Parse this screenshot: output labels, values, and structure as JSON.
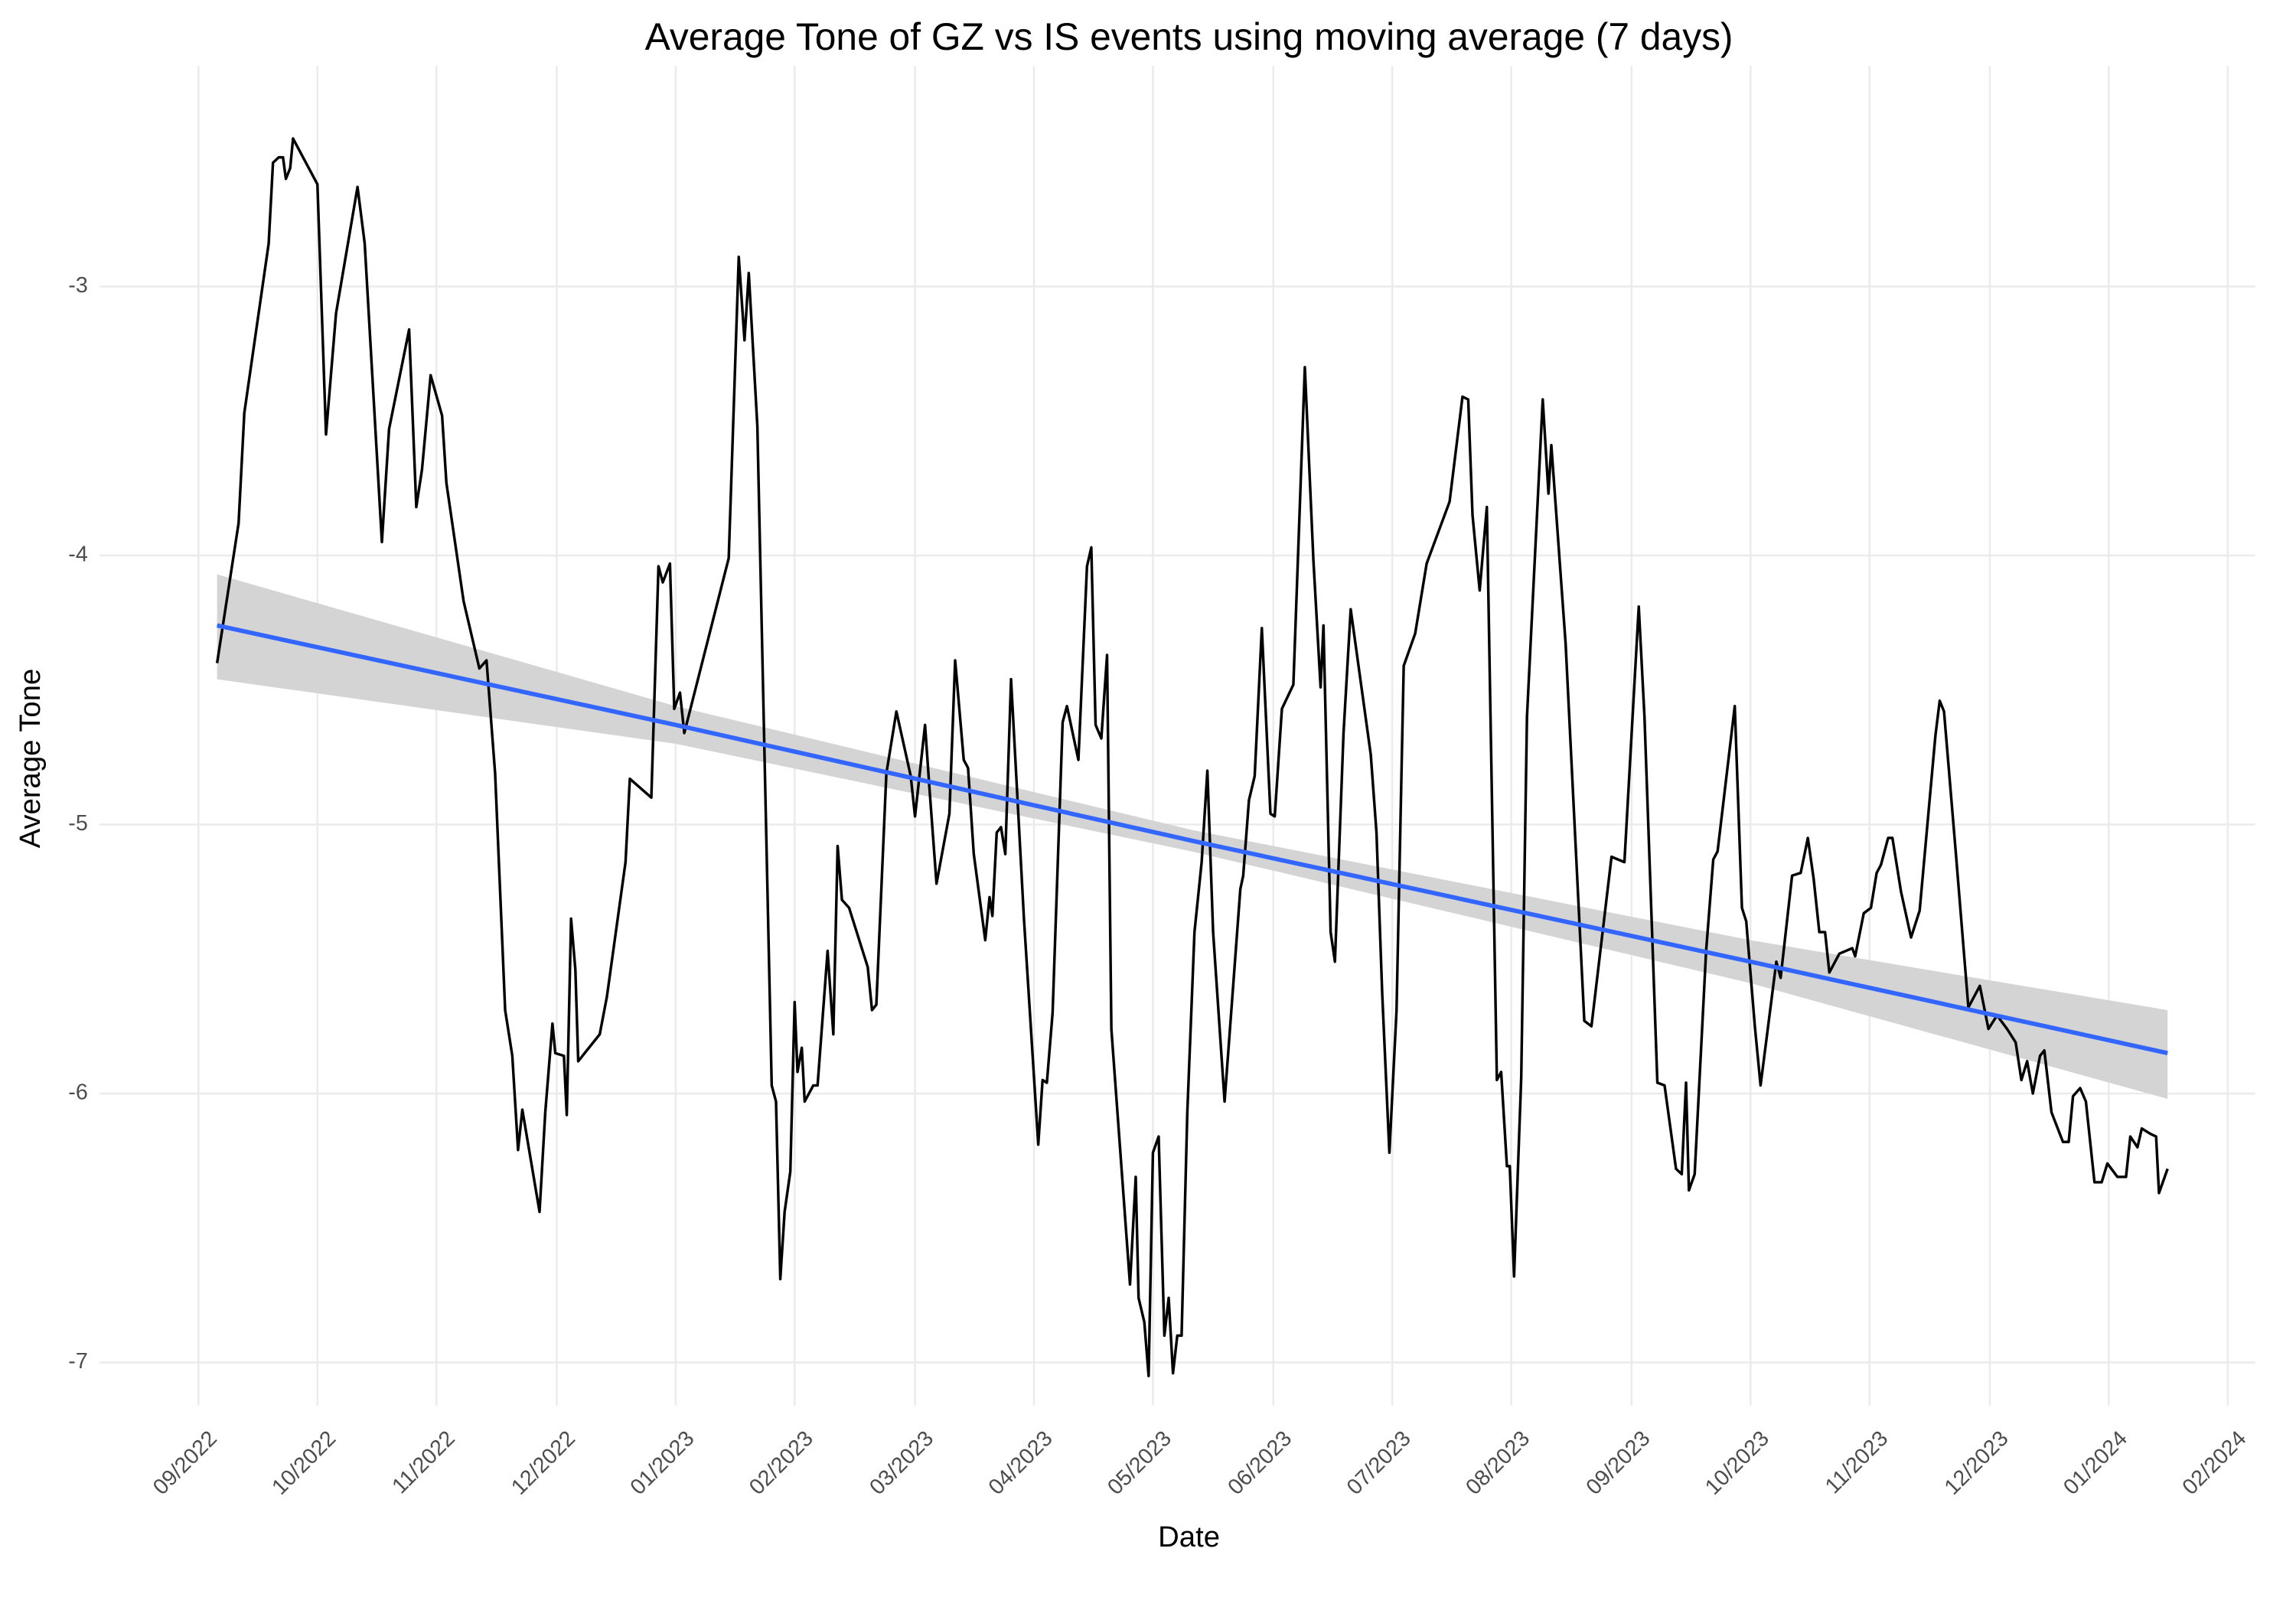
{
  "chart_data": {
    "type": "line",
    "title": "Average Tone of GZ vs IS events using moving average (7 days)",
    "x_label": "Date",
    "y_label": "Average Tone",
    "grid": true,
    "xlim": [
      2022.598,
      2024.102
    ],
    "ylim": [
      -7.16,
      -2.18
    ],
    "xticks": [
      {
        "value": 2022.667,
        "label": "09/2022"
      },
      {
        "value": 2022.75,
        "label": "10/2022"
      },
      {
        "value": 2022.833,
        "label": "11/2022"
      },
      {
        "value": 2022.917,
        "label": "12/2022"
      },
      {
        "value": 2023.0,
        "label": "01/2023"
      },
      {
        "value": 2023.083,
        "label": "02/2023"
      },
      {
        "value": 2023.167,
        "label": "03/2023"
      },
      {
        "value": 2023.25,
        "label": "04/2023"
      },
      {
        "value": 2023.333,
        "label": "05/2023"
      },
      {
        "value": 2023.417,
        "label": "06/2023"
      },
      {
        "value": 2023.5,
        "label": "07/2023"
      },
      {
        "value": 2023.583,
        "label": "08/2023"
      },
      {
        "value": 2023.667,
        "label": "09/2023"
      },
      {
        "value": 2023.75,
        "label": "10/2023"
      },
      {
        "value": 2023.833,
        "label": "11/2023"
      },
      {
        "value": 2023.917,
        "label": "12/2023"
      },
      {
        "value": 2024.0,
        "label": "01/2024"
      },
      {
        "value": 2024.083,
        "label": "02/2024"
      }
    ],
    "yticks": [
      -3,
      -4,
      -5,
      -6,
      -7
    ],
    "x": [
      2022.68,
      2022.695,
      2022.699,
      2022.716,
      2022.719,
      2022.723,
      2022.726,
      2022.728,
      2022.731,
      2022.733,
      2022.75,
      2022.756,
      2022.763,
      2022.778,
      2022.783,
      2022.795,
      2022.8,
      2022.814,
      2022.819,
      2022.823,
      2022.829,
      2022.837,
      2022.84,
      2022.852,
      2022.863,
      2022.868,
      2022.874,
      2022.881,
      2022.886,
      2022.89,
      2022.893,
      2022.905,
      2022.909,
      2022.914,
      2022.916,
      2022.922,
      2022.924,
      2022.927,
      2022.93,
      2022.932,
      2022.947,
      2022.952,
      2022.965,
      2022.968,
      2022.983,
      2022.988,
      2022.991,
      2022.996,
      2022.999,
      2023.003,
      2023.006,
      2023.037,
      2023.044,
      2023.048,
      2023.051,
      2023.057,
      2023.067,
      2023.07,
      2023.073,
      2023.076,
      2023.08,
      2023.083,
      2023.085,
      2023.088,
      2023.09,
      2023.096,
      2023.099,
      2023.106,
      2023.11,
      2023.113,
      2023.116,
      2023.121,
      2023.134,
      2023.137,
      2023.14,
      2023.147,
      2023.154,
      2023.164,
      2023.167,
      2023.174,
      2023.177,
      2023.182,
      2023.191,
      2023.195,
      2023.201,
      2023.204,
      2023.208,
      2023.216,
      2023.219,
      2023.221,
      2023.224,
      2023.227,
      2023.23,
      2023.234,
      2023.243,
      2023.253,
      2023.256,
      2023.259,
      2023.263,
      2023.27,
      2023.273,
      2023.281,
      2023.287,
      2023.29,
      2023.293,
      2023.297,
      2023.301,
      2023.304,
      2023.317,
      2023.321,
      2023.323,
      2023.327,
      2023.33,
      2023.333,
      2023.337,
      2023.341,
      2023.344,
      2023.347,
      2023.35,
      2023.353,
      2023.357,
      2023.362,
      2023.367,
      2023.371,
      2023.375,
      2023.383,
      2023.394,
      2023.396,
      2023.4,
      2023.404,
      2023.409,
      2023.415,
      2023.418,
      2023.423,
      2023.431,
      2023.439,
      2023.445,
      2023.45,
      2023.452,
      2023.457,
      2023.46,
      2023.466,
      2023.471,
      2023.485,
      2023.489,
      2023.493,
      2023.498,
      2023.503,
      2023.508,
      2023.516,
      2023.524,
      2023.54,
      2023.549,
      2023.553,
      2023.556,
      2023.561,
      2023.566,
      2023.573,
      2023.576,
      2023.58,
      2023.582,
      2023.585,
      2023.59,
      2023.594,
      2023.605,
      2023.609,
      2023.611,
      2023.621,
      2023.634,
      2023.639,
      2023.653,
      2023.662,
      2023.672,
      2023.676,
      2023.685,
      2023.69,
      2023.698,
      2023.702,
      2023.705,
      2023.707,
      2023.711,
      2023.719,
      2023.724,
      2023.727,
      2023.739,
      2023.744,
      2023.747,
      2023.753,
      2023.757,
      2023.768,
      2023.771,
      2023.779,
      2023.785,
      2023.79,
      2023.794,
      2023.798,
      2023.802,
      2023.805,
      2023.812,
      2023.821,
      2023.823,
      2023.829,
      2023.834,
      2023.838,
      2023.841,
      2023.846,
      2023.849,
      2023.855,
      2023.862,
      2023.868,
      2023.879,
      2023.882,
      2023.885,
      2023.893,
      2023.902,
      2023.91,
      2023.916,
      2023.922,
      2023.929,
      2023.935,
      2023.939,
      2023.943,
      2023.947,
      2023.952,
      2023.955,
      2023.96,
      2023.968,
      2023.972,
      2023.975,
      2023.98,
      2023.984,
      2023.99,
      2023.995,
      2023.999,
      2024.006,
      2024.012,
      2024.015,
      2024.02,
      2024.023,
      2024.029,
      2024.033,
      2024.035,
      2024.041
    ],
    "series": [
      {
        "color": "#000000",
        "values": [
          -4.4,
          -3.88,
          -3.47,
          -2.84,
          -2.54,
          -2.52,
          -2.52,
          -2.6,
          -2.56,
          -2.45,
          -2.62,
          -3.55,
          -3.1,
          -2.63,
          -2.84,
          -3.95,
          -3.53,
          -3.16,
          -3.82,
          -3.68,
          -3.33,
          -3.48,
          -3.73,
          -4.17,
          -4.42,
          -4.39,
          -4.81,
          -5.69,
          -5.86,
          -6.21,
          -6.06,
          -6.44,
          -6.07,
          -5.74,
          -5.85,
          -5.86,
          -6.08,
          -5.35,
          -5.54,
          -5.88,
          -5.78,
          -5.64,
          -5.14,
          -4.83,
          -4.9,
          -4.04,
          -4.1,
          -4.03,
          -4.57,
          -4.51,
          -4.66,
          -4.01,
          -2.89,
          -3.2,
          -2.95,
          -3.52,
          -5.97,
          -6.03,
          -6.69,
          -6.44,
          -6.29,
          -5.66,
          -5.92,
          -5.83,
          -6.03,
          -5.97,
          -5.97,
          -5.47,
          -5.78,
          -5.08,
          -5.28,
          -5.31,
          -5.53,
          -5.69,
          -5.67,
          -4.81,
          -4.58,
          -4.82,
          -4.97,
          -4.63,
          -4.86,
          -5.22,
          -4.96,
          -4.39,
          -4.76,
          -4.79,
          -5.11,
          -5.43,
          -5.27,
          -5.34,
          -5.03,
          -5.01,
          -5.11,
          -4.46,
          -5.35,
          -6.19,
          -5.95,
          -5.96,
          -5.7,
          -4.62,
          -4.56,
          -4.76,
          -4.04,
          -3.97,
          -4.63,
          -4.68,
          -4.37,
          -5.76,
          -6.71,
          -6.31,
          -6.76,
          -6.85,
          -7.05,
          -6.22,
          -6.16,
          -6.9,
          -6.76,
          -7.04,
          -6.9,
          -6.9,
          -6.07,
          -5.4,
          -5.14,
          -4.8,
          -5.4,
          -6.03,
          -5.24,
          -5.19,
          -4.91,
          -4.82,
          -4.27,
          -4.96,
          -4.97,
          -4.57,
          -4.48,
          -3.3,
          -4.02,
          -4.49,
          -4.26,
          -5.4,
          -5.51,
          -4.66,
          -4.2,
          -4.74,
          -5.03,
          -5.63,
          -6.22,
          -5.69,
          -4.41,
          -4.29,
          -4.03,
          -3.8,
          -3.41,
          -3.42,
          -3.85,
          -4.13,
          -3.82,
          -5.95,
          -5.92,
          -6.27,
          -6.27,
          -6.68,
          -5.94,
          -4.6,
          -3.42,
          -3.77,
          -3.59,
          -4.33,
          -5.73,
          -5.75,
          -5.12,
          -5.14,
          -4.19,
          -4.6,
          -5.96,
          -5.97,
          -6.28,
          -6.3,
          -5.96,
          -6.36,
          -6.3,
          -5.47,
          -5.13,
          -5.1,
          -4.56,
          -5.31,
          -5.36,
          -5.75,
          -5.97,
          -5.51,
          -5.57,
          -5.19,
          -5.18,
          -5.05,
          -5.2,
          -5.4,
          -5.4,
          -5.55,
          -5.48,
          -5.46,
          -5.49,
          -5.33,
          -5.31,
          -5.18,
          -5.15,
          -5.05,
          -5.05,
          -5.25,
          -5.42,
          -5.32,
          -4.67,
          -4.54,
          -4.58,
          -5.09,
          -5.68,
          -5.6,
          -5.76,
          -5.71,
          -5.76,
          -5.81,
          -5.95,
          -5.88,
          -6.0,
          -5.86,
          -5.84,
          -6.07,
          -6.18,
          -6.18,
          -6.01,
          -5.98,
          -6.03,
          -6.33,
          -6.33,
          -6.26,
          -6.31,
          -6.31,
          -6.16,
          -6.2,
          -6.13,
          -6.15,
          -6.16,
          -6.37,
          -6.28
        ]
      }
    ],
    "trend": {
      "color": "#3366ff",
      "band_color": "#d4d4d4",
      "x": [
        2022.68,
        2023.0,
        2023.36,
        2023.75,
        2024.041
      ],
      "values": [
        -4.26,
        -4.63,
        -5.06,
        -5.51,
        -5.85
      ],
      "lower": [
        -4.46,
        -4.7,
        -5.1,
        -5.59,
        -6.02
      ],
      "upper": [
        -4.07,
        -4.56,
        -5.02,
        -5.43,
        -5.69
      ]
    }
  }
}
